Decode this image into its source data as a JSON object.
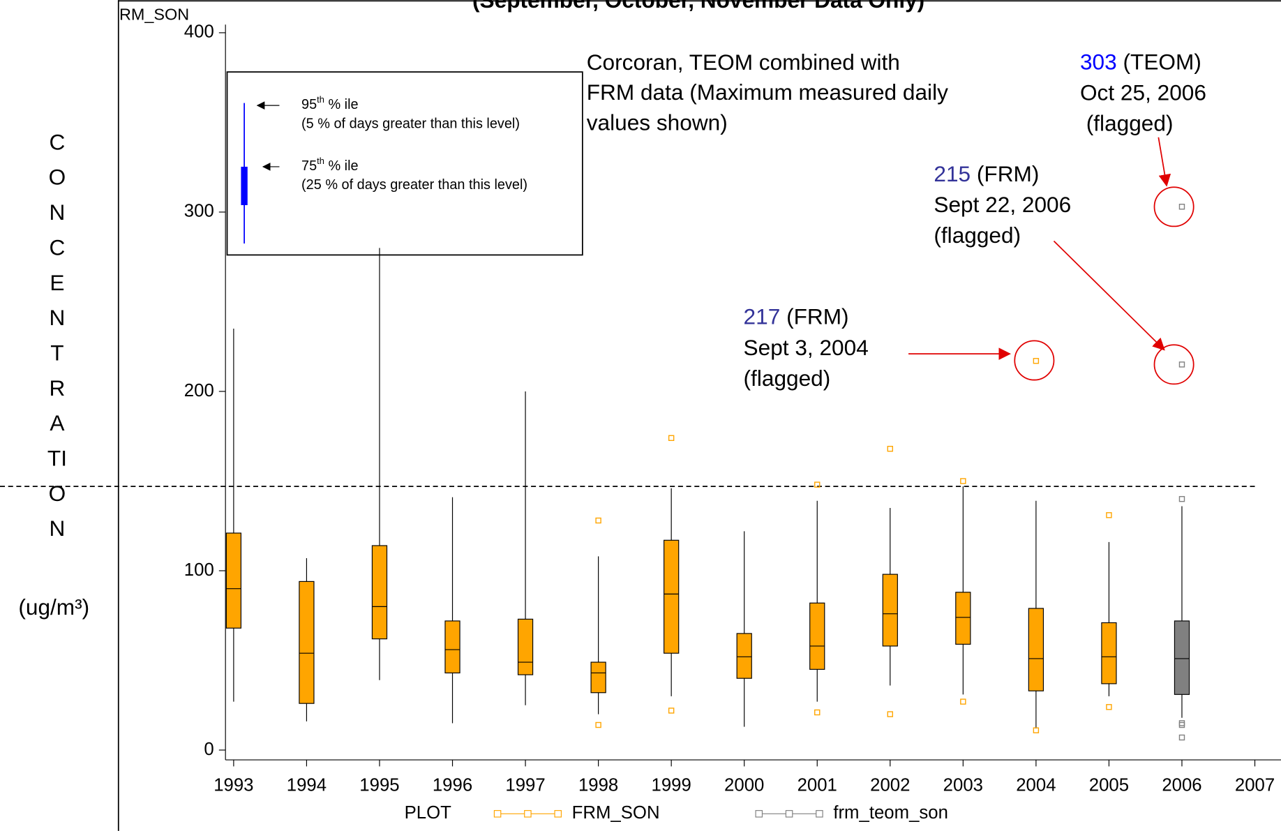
{
  "chart_data": {
    "type": "box",
    "title": "(September, October, November Data Only)",
    "y_axis_label_top": "RM_SON",
    "y_axis_label": "CONCENTRATION",
    "y_axis_unit": "(ug/m³)",
    "xlim": [
      1993,
      2007
    ],
    "xticks": [
      1993,
      1994,
      1995,
      1996,
      1997,
      1998,
      1999,
      2000,
      2001,
      2002,
      2003,
      2004,
      2005,
      2006,
      2007
    ],
    "ylim": [
      0,
      400
    ],
    "yticks": [
      0,
      100,
      200,
      300,
      400
    ],
    "reference_line": 147,
    "legend_title": "PLOT",
    "series": [
      {
        "name": "FRM_SON",
        "color": "#ffa500",
        "boxes": [
          {
            "x": 1993,
            "low": 27,
            "q1": 68,
            "median": 90,
            "q3": 121,
            "high": 235,
            "outliers": []
          },
          {
            "x": 1994,
            "low": 16,
            "q1": 26,
            "median": 54,
            "q3": 94,
            "high": 107,
            "outliers": []
          },
          {
            "x": 1995,
            "low": 39,
            "q1": 62,
            "median": 80,
            "q3": 114,
            "high": 280,
            "outliers": []
          },
          {
            "x": 1996,
            "low": 15,
            "q1": 43,
            "median": 56,
            "q3": 72,
            "high": 141,
            "outliers": []
          },
          {
            "x": 1997,
            "low": 25,
            "q1": 42,
            "median": 49,
            "q3": 73,
            "high": 200,
            "outliers": []
          },
          {
            "x": 1998,
            "low": 20,
            "q1": 32,
            "median": 43,
            "q3": 49,
            "high": 108,
            "outliers": [
              128,
              14
            ]
          },
          {
            "x": 1999,
            "low": 30,
            "q1": 54,
            "median": 87,
            "q3": 117,
            "high": 146,
            "outliers": [
              174,
              22
            ]
          },
          {
            "x": 2000,
            "low": 13,
            "q1": 40,
            "median": 52,
            "q3": 65,
            "high": 122,
            "outliers": []
          },
          {
            "x": 2001,
            "low": 27,
            "q1": 45,
            "median": 58,
            "q3": 82,
            "high": 139,
            "outliers": [
              148,
              21
            ]
          },
          {
            "x": 2002,
            "low": 36,
            "q1": 58,
            "median": 76,
            "q3": 98,
            "high": 135,
            "outliers": [
              168,
              20
            ]
          },
          {
            "x": 2003,
            "low": 31,
            "q1": 59,
            "median": 74,
            "q3": 88,
            "high": 147,
            "outliers": [
              150,
              27
            ]
          },
          {
            "x": 2004,
            "low": 12,
            "q1": 33,
            "median": 51,
            "q3": 79,
            "high": 139,
            "outliers": [
              217,
              11
            ]
          },
          {
            "x": 2005,
            "low": 30,
            "q1": 37,
            "median": 52,
            "q3": 71,
            "high": 116,
            "outliers": [
              131,
              24
            ]
          }
        ]
      },
      {
        "name": "frm_teom_son",
        "color": "#808080",
        "boxes": [
          {
            "x": 2006,
            "low": 18,
            "q1": 31,
            "median": 51,
            "q3": 72,
            "high": 136,
            "outliers": [
              303,
              215,
              140,
              15,
              14,
              7
            ]
          }
        ]
      }
    ],
    "annotations": {
      "main": [
        "Corcoran, TEOM combined with",
        "FRM data (Maximum measured daily",
        "values shown)"
      ],
      "callouts": [
        {
          "number": "303",
          "source": " (TEOM)",
          "lines": [
            "Oct 25, 2006",
            " (flagged)"
          ]
        },
        {
          "number": "215",
          "source": " (FRM)",
          "lines": [
            "Sept 22, 2006",
            "(flagged)"
          ]
        },
        {
          "number": "217",
          "source": " (FRM)",
          "lines": [
            "Sept 3, 2004",
            "(flagged)"
          ]
        }
      ]
    },
    "key": [
      {
        "number": "95",
        "sup": "th",
        "rest": " % ile",
        "note": "(5 % of days greater than this level)"
      },
      {
        "number": "75",
        "sup": "th",
        "rest": " % ile",
        "note": "(25 % of days greater than this level)"
      }
    ]
  }
}
